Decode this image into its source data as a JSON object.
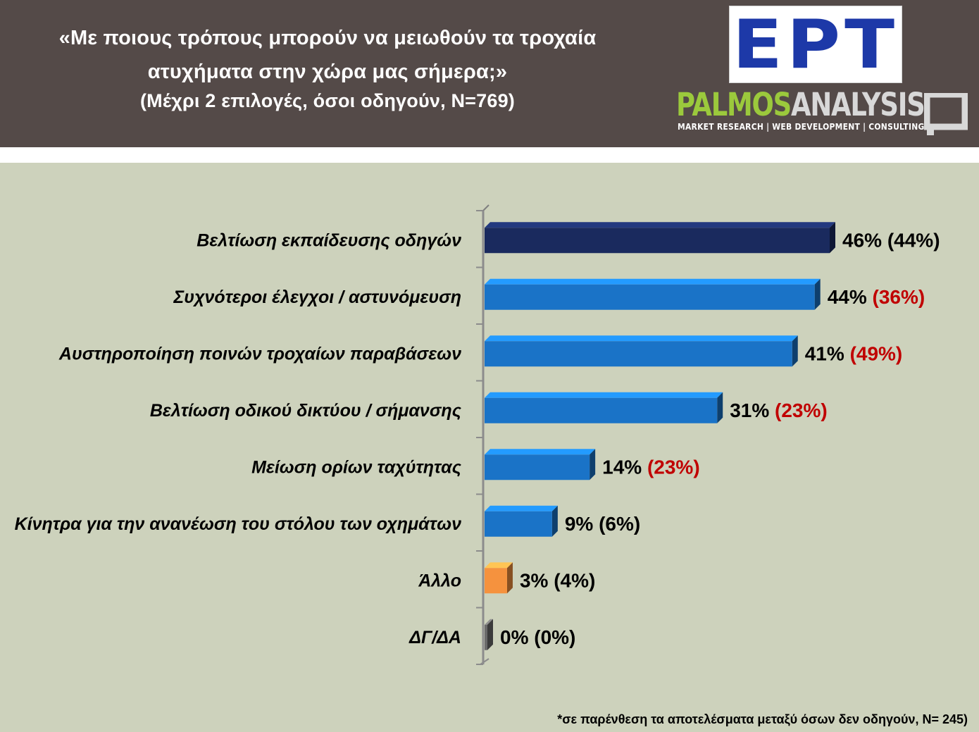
{
  "header": {
    "title_line1": "«Με ποιους τρόπους μπορούν να μειωθούν τα τροχαία",
    "title_line2": "ατυχήματα στην χώρα μας σήμερα;»",
    "subtitle": "(Μέχρι 2 επιλογές, όσοι οδηγούν, Ν=769)",
    "logo_ert": "ΕΡΤ",
    "logo_palmos_part1": "PALMOS",
    "logo_palmos_part2": "ANALYSIS",
    "logo_palmos_tagline": "MARKET RESEARCH | WEB DEVELOPMENT | CONSULTING"
  },
  "footnote": "*σε παρένθεση τα αποτελέσματα μεταξύ όσων δεν οδηγούν, Ν= 245)",
  "colors": {
    "header_bg": "#544a48",
    "plot_bg": "#cdd2bc",
    "bar_highlight": "#1a2a5e",
    "bar_default": "#1a73c7",
    "bar_other": "#f5923e",
    "bar_dk": "#6b6b6b",
    "accent_red": "#c00000",
    "ert_blue": "#1d39a8",
    "palmos_green": "#9bc93c"
  },
  "chart_data": {
    "type": "bar",
    "orientation": "horizontal",
    "categories": [
      "Βελτίωση εκπαίδευσης οδηγών",
      "Συχνότεροι έλεγχοι / αστυνόμευση",
      "Αυστηροποίηση ποινών τροχαίων παραβάσεων",
      "Βελτίωση οδικού δικτύου / σήμανσης",
      "Μείωση ορίων ταχύτητας",
      "Κίνητρα για την ανανέωση του στόλου των οχημάτων",
      "Άλλο",
      "ΔΓ/ΔΑ"
    ],
    "series": [
      {
        "values": [
          46,
          44,
          41,
          31,
          14,
          9,
          3,
          0
        ]
      },
      {
        "values": [
          44,
          36,
          49,
          23,
          23,
          6,
          4,
          0
        ]
      }
    ],
    "labels_primary": [
      "46%",
      "44%",
      "41%",
      "31%",
      "14%",
      "9%",
      "3%",
      "0%"
    ],
    "labels_secondary": [
      "(44%)",
      "(36%)",
      "(49%)",
      "(23%)",
      "(23%)",
      "(6%)",
      "(4%)",
      "(0%)"
    ],
    "secondary_highlight": [
      false,
      true,
      true,
      true,
      true,
      false,
      false,
      false
    ],
    "bar_colors": [
      "#1a2a5e",
      "#1a73c7",
      "#1a73c7",
      "#1a73c7",
      "#1a73c7",
      "#1a73c7",
      "#f5923e",
      "#6b6b6b"
    ],
    "xlim": [
      0,
      50
    ],
    "grid": false,
    "legend": "none"
  }
}
